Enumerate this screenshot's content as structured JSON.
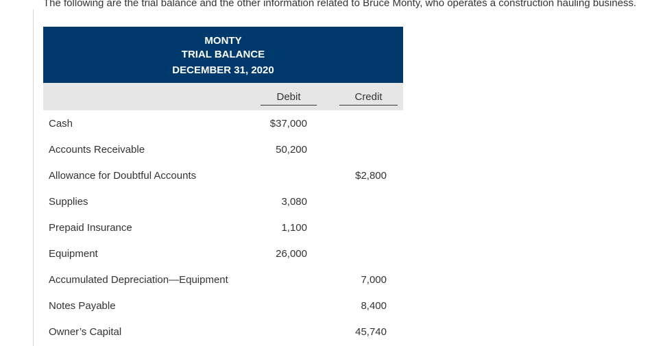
{
  "intro_text": "The following are the trial balance and the other information related to Bruce Monty, who operates a construction hauling business.",
  "header": {
    "line1": "MONTY",
    "line2": "TRIAL BALANCE",
    "line3": "DECEMBER 31, 2020",
    "background_color": "#003a6c"
  },
  "columns": {
    "debit": "Debit",
    "credit": "Credit"
  },
  "rows": [
    {
      "account": "Cash",
      "debit": "$37,000",
      "credit": ""
    },
    {
      "account": "Accounts Receivable",
      "debit": "50,200",
      "credit": ""
    },
    {
      "account": "Allowance for Doubtful Accounts",
      "debit": "",
      "credit": "$2,800"
    },
    {
      "account": "Supplies",
      "debit": "3,080",
      "credit": ""
    },
    {
      "account": "Prepaid Insurance",
      "debit": "1,100",
      "credit": ""
    },
    {
      "account": "Equipment",
      "debit": "26,000",
      "credit": ""
    },
    {
      "account": "Accumulated Depreciation—Equipment",
      "debit": "",
      "credit": "7,000"
    },
    {
      "account": "Notes Payable",
      "debit": "",
      "credit": "8,400"
    },
    {
      "account": "Owner’s Capital",
      "debit": "",
      "credit": "45,740"
    }
  ]
}
